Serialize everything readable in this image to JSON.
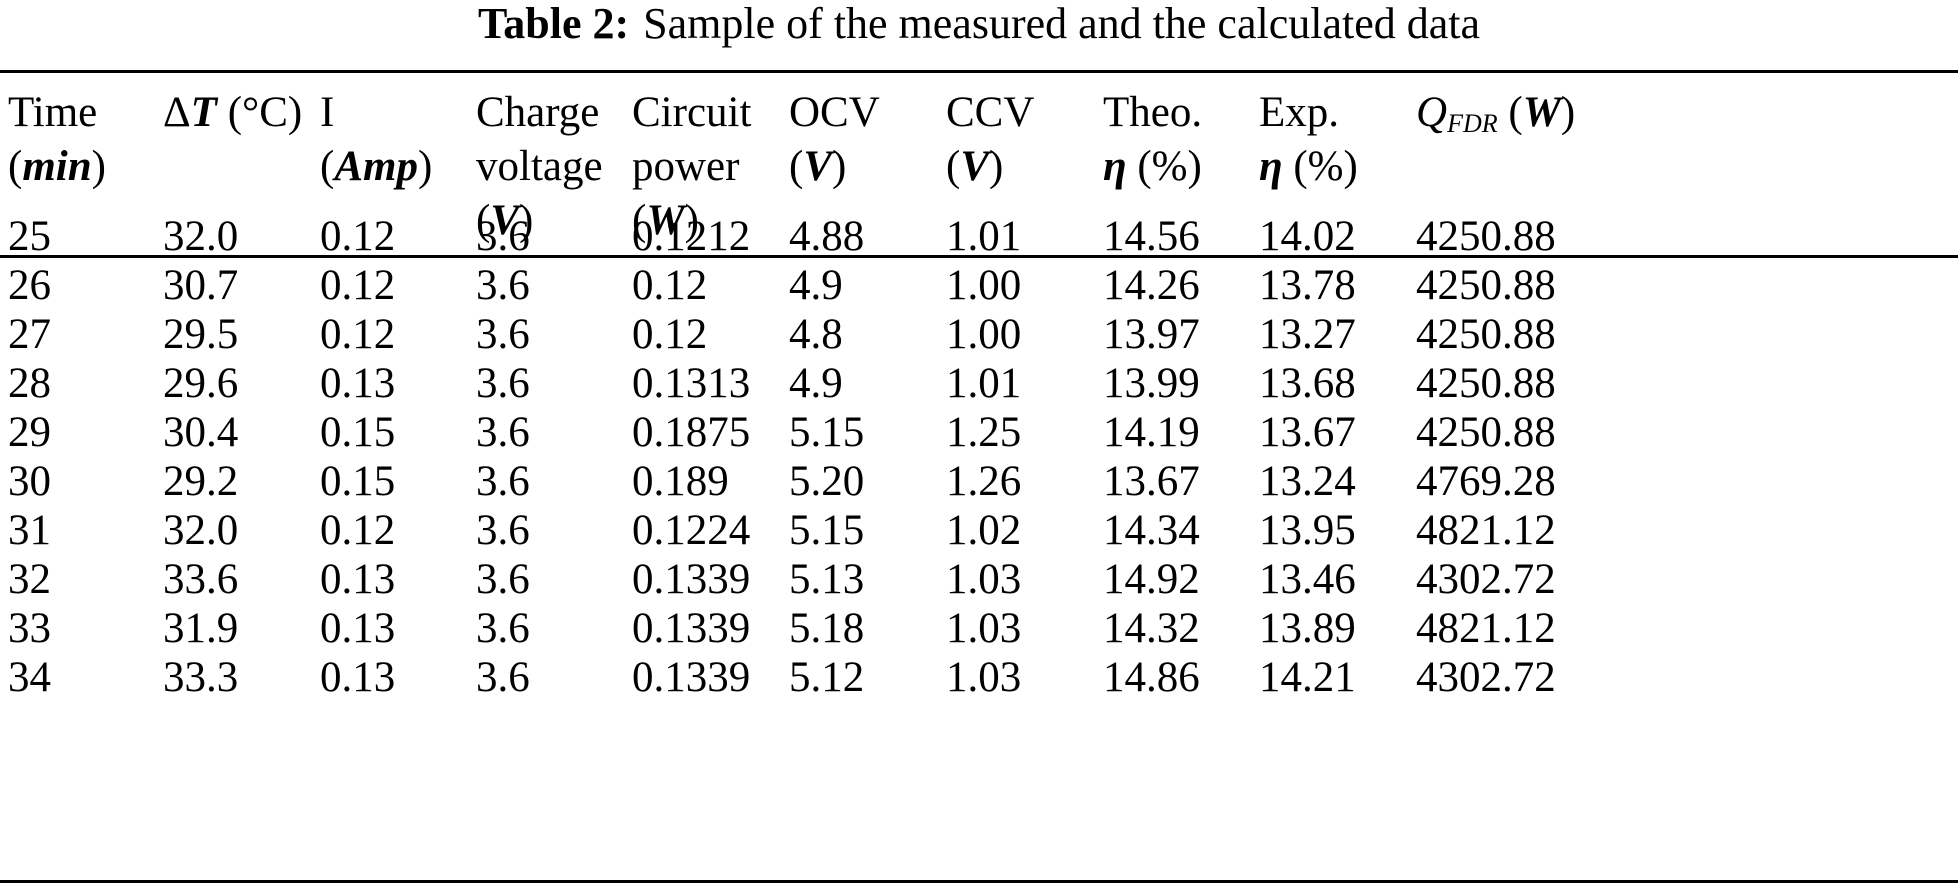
{
  "caption": {
    "label": "Table 2:",
    "text": "Sample of the measured and the calculated data"
  },
  "headers": {
    "time": {
      "line1": "Time",
      "open": "(",
      "unit": "min",
      "close": ")"
    },
    "deltaT": {
      "sym": "Δ",
      "var": "T",
      "unit": " (°C)"
    },
    "current": {
      "line1": "I",
      "open": "(",
      "unit": "Amp",
      "close": ")"
    },
    "charge_voltage": {
      "line1": "Charge",
      "line2": "voltage",
      "open": "(",
      "unit": "V",
      "close": ")"
    },
    "circuit_power": {
      "line1": "Circuit",
      "line2": "power",
      "open": "(",
      "unit": "W",
      "close": ")"
    },
    "ocv": {
      "line1": "OCV",
      "open": "(",
      "unit": "V",
      "close": ")"
    },
    "ccv": {
      "line1": "CCV",
      "open": "(",
      "unit": "V",
      "close": ")"
    },
    "theo": {
      "line1": "Theo.",
      "sym": "η",
      "unit": " (%)"
    },
    "exp": {
      "line1": "Exp.",
      "sym": "η",
      "unit": " (%)"
    },
    "qfdr": {
      "q": "Q",
      "sub": "FDR",
      "open": " (",
      "unit": "W",
      "close": ")"
    }
  },
  "rows": [
    [
      "25",
      "32.0",
      "0.12",
      "3.6",
      "0.1212",
      "4.88",
      "1.01",
      "14.56",
      "14.02",
      "4250.88"
    ],
    [
      "26",
      "30.7",
      "0.12",
      "3.6",
      "0.12",
      "4.9",
      "1.00",
      "14.26",
      "13.78",
      "4250.88"
    ],
    [
      "27",
      "29.5",
      "0.12",
      "3.6",
      "0.12",
      "4.8",
      "1.00",
      "13.97",
      "13.27",
      "4250.88"
    ],
    [
      "28",
      "29.6",
      "0.13",
      "3.6",
      "0.1313",
      "4.9",
      "1.01",
      "13.99",
      "13.68",
      "4250.88"
    ],
    [
      "29",
      "30.4",
      "0.15",
      "3.6",
      "0.1875",
      "5.15",
      "1.25",
      "14.19",
      "13.67",
      "4250.88"
    ],
    [
      "30",
      "29.2",
      "0.15",
      "3.6",
      "0.189",
      "5.20",
      "1.26",
      "13.67",
      "13.24",
      "4769.28"
    ],
    [
      "31",
      "32.0",
      "0.12",
      "3.6",
      "0.1224",
      "5.15",
      "1.02",
      "14.34",
      "13.95",
      "4821.12"
    ],
    [
      "32",
      "33.6",
      "0.13",
      "3.6",
      "0.1339",
      "5.13",
      "1.03",
      "14.92",
      "13.46",
      "4302.72"
    ],
    [
      "33",
      "31.9",
      "0.13",
      "3.6",
      "0.1339",
      "5.18",
      "1.03",
      "14.32",
      "13.89",
      "4821.12"
    ],
    [
      "34",
      "33.3",
      "0.13",
      "3.6",
      "0.1339",
      "5.12",
      "1.03",
      "14.86",
      "14.21",
      "4302.72"
    ]
  ]
}
